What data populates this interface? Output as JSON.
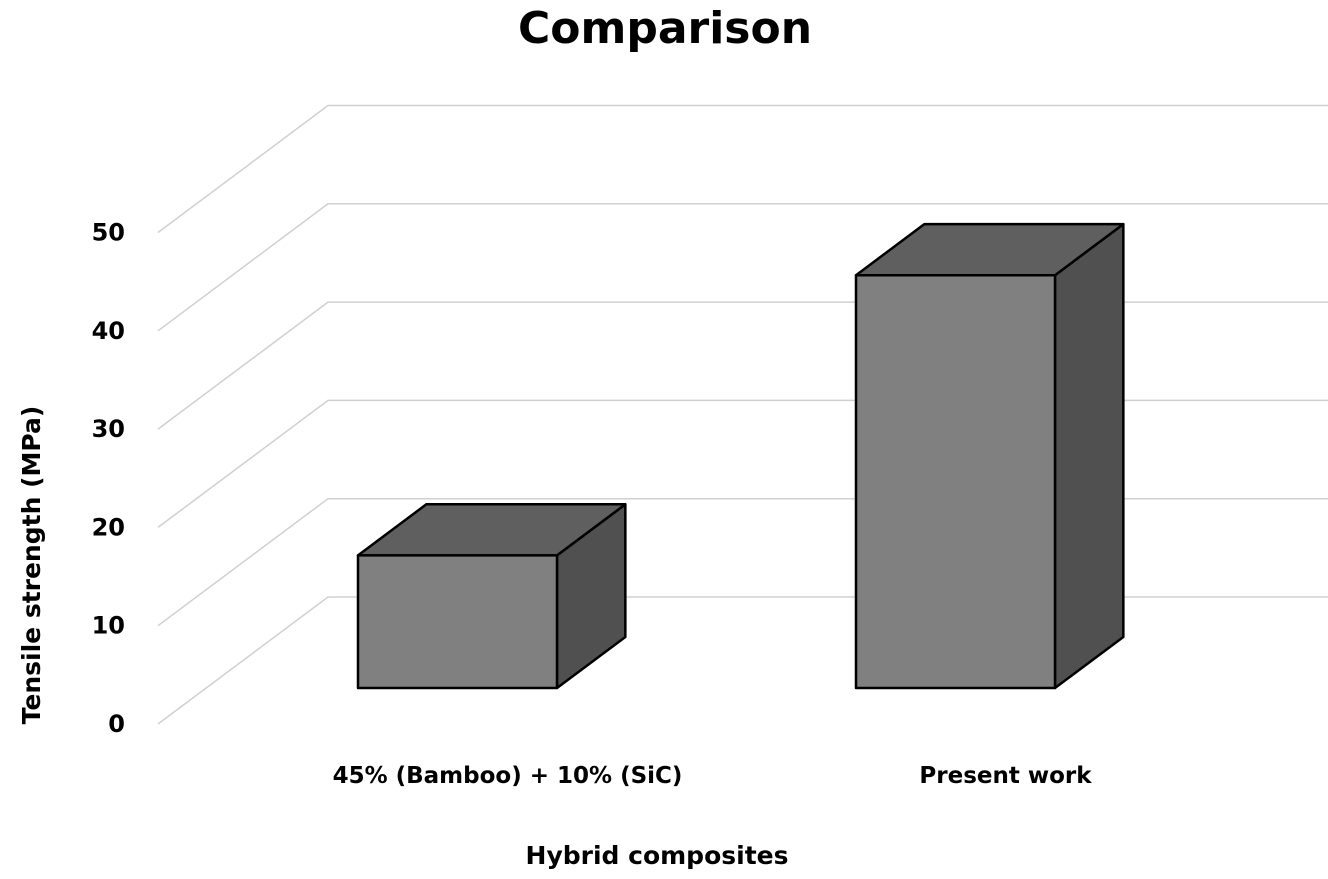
{
  "chart_data": {
    "type": "bar",
    "style": "3d-column",
    "title": "Comparison",
    "xlabel": "Hybrid composites",
    "ylabel": "Tensile strength (MPa)",
    "categories": [
      "45% (Bamboo) + 10% (SiC)",
      "Present work"
    ],
    "values": [
      13.5,
      42
    ],
    "ylim": [
      0,
      50
    ],
    "yticks": [
      0,
      10,
      20,
      30,
      40,
      50
    ],
    "grid": true,
    "legend": "none",
    "colors": {
      "front": "#808080",
      "top": "#5f5f5f",
      "side": "#505050",
      "grid": "#d0d0d0",
      "outline": "#000000"
    }
  }
}
